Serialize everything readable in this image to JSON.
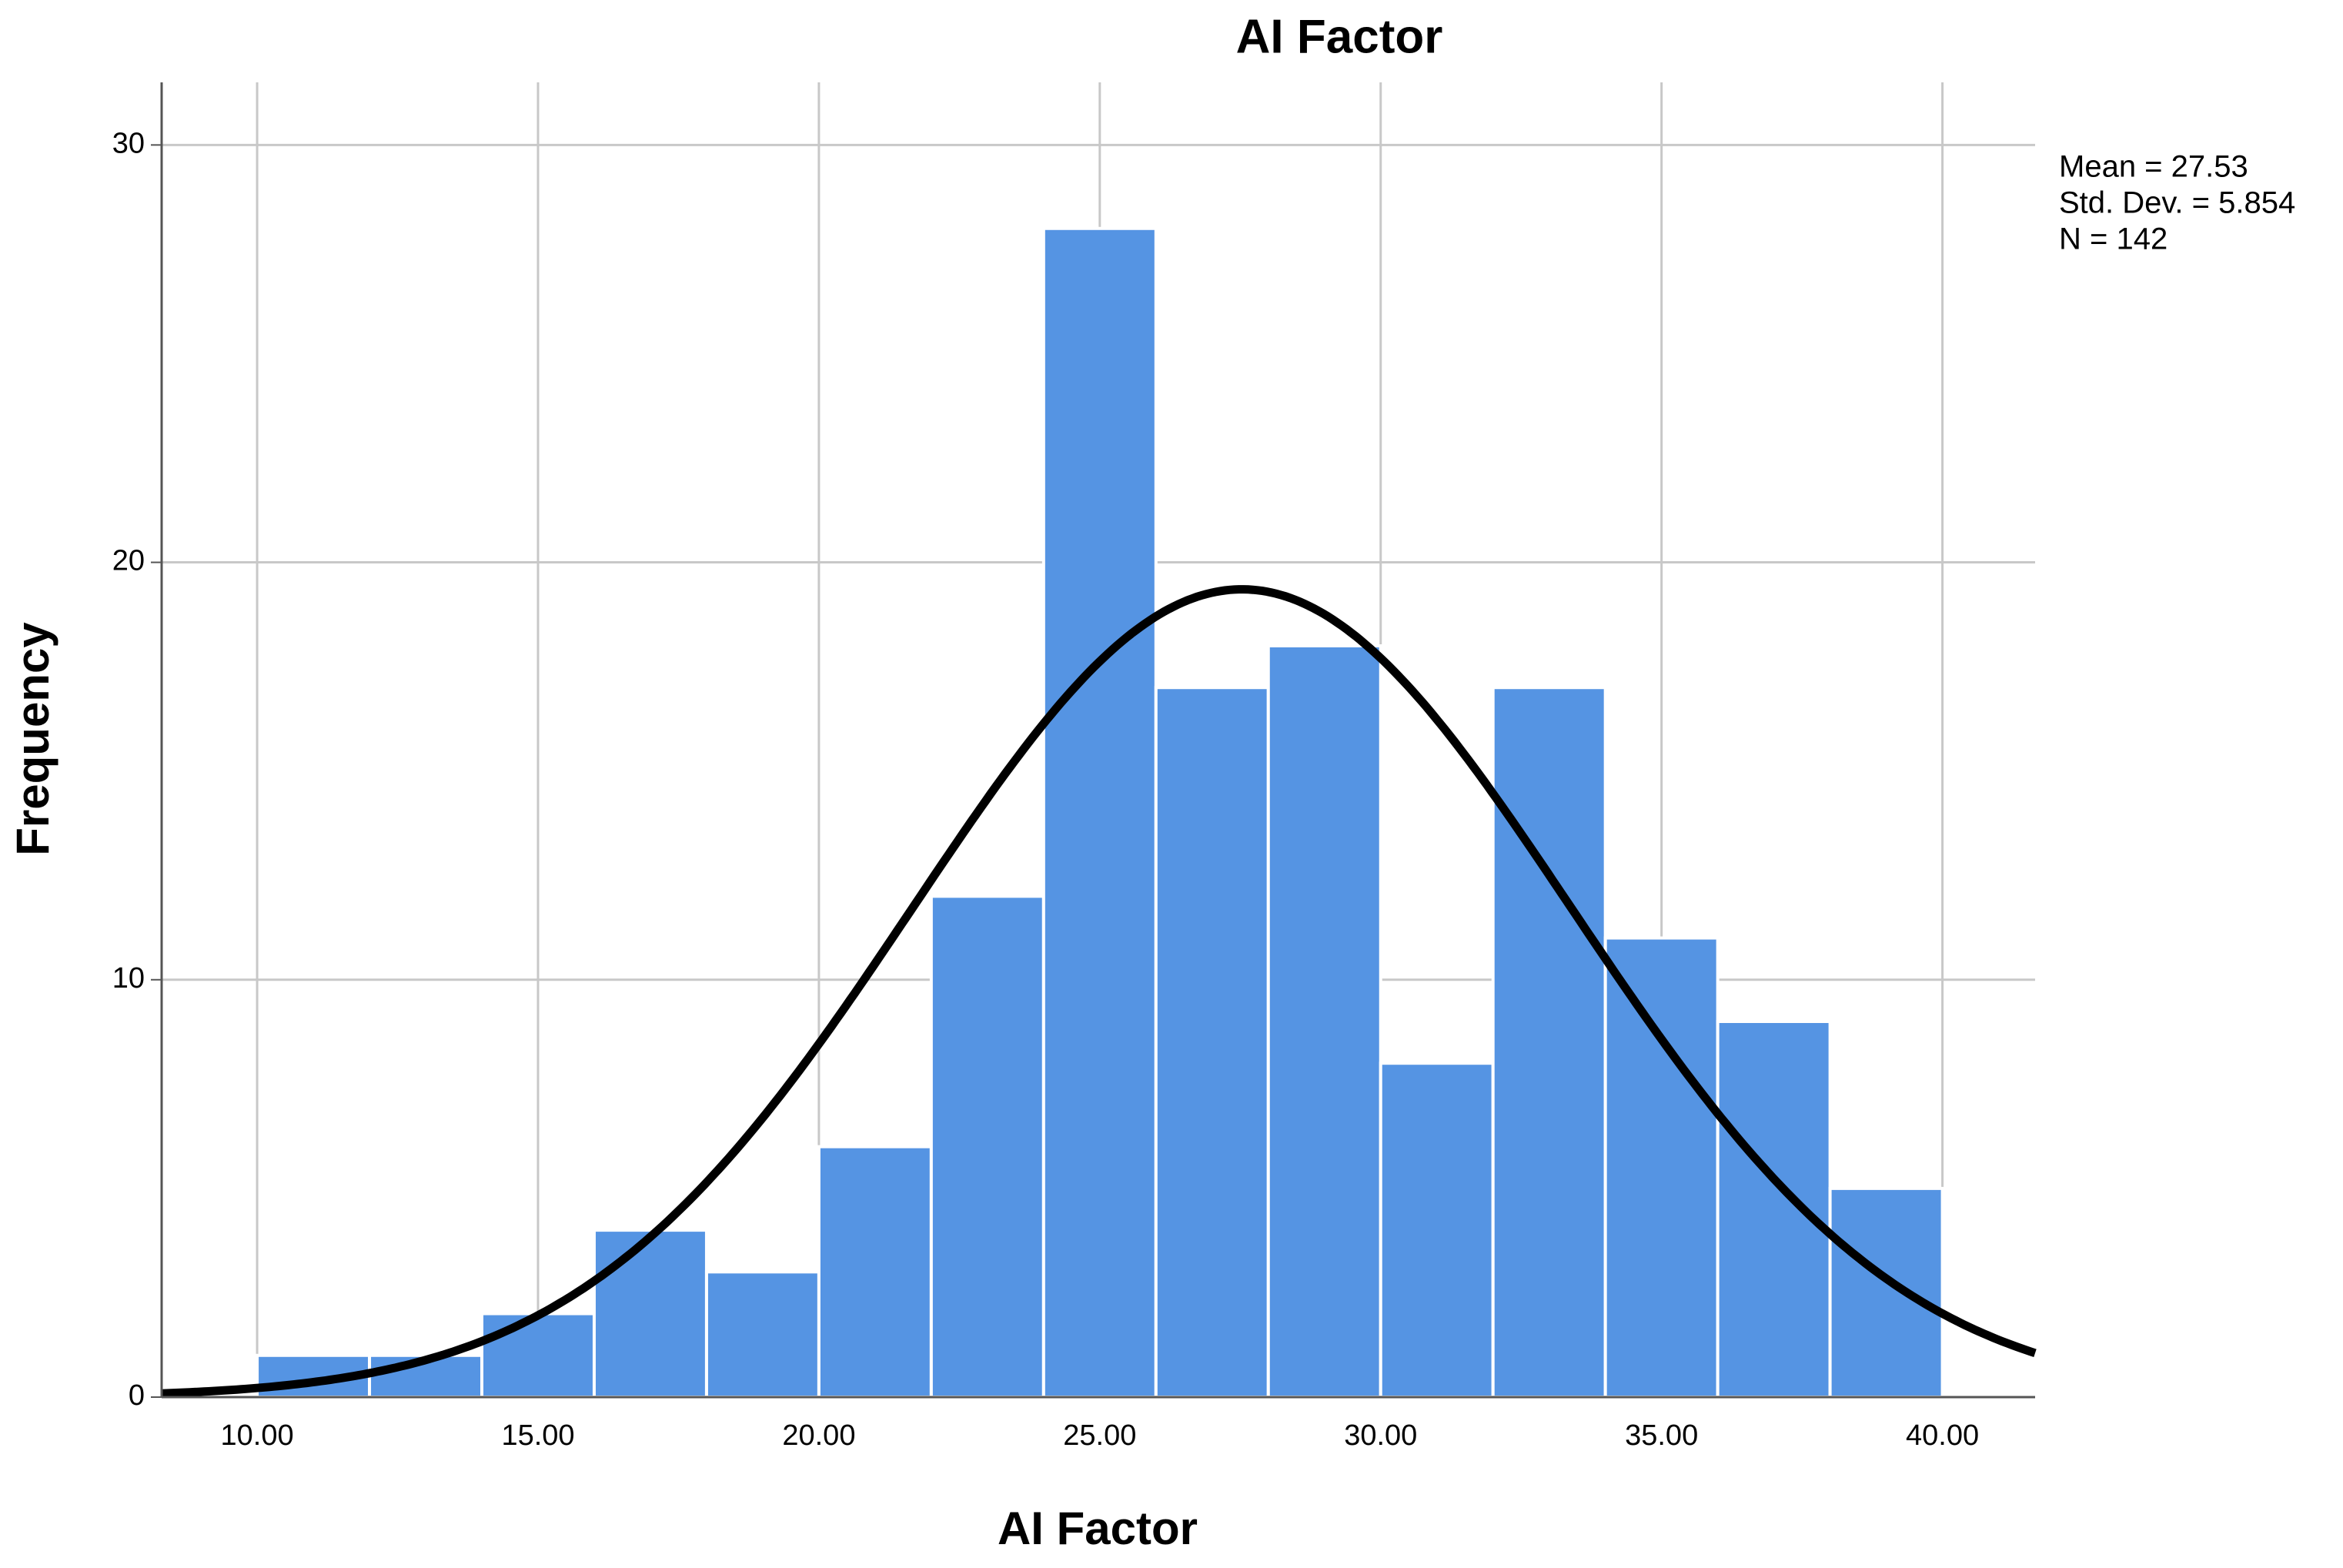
{
  "chart_data": {
    "type": "histogram",
    "title": "AI Factor",
    "x_label": "AI Factor",
    "y_label": "Frequency",
    "bins": [
      10,
      12,
      14,
      16,
      18,
      20,
      22,
      24,
      26,
      28,
      30,
      32,
      34,
      36,
      38,
      40
    ],
    "values": [
      1,
      1,
      2,
      4,
      3,
      6,
      12,
      28,
      17,
      18,
      8,
      17,
      11,
      9,
      5
    ],
    "color": "#5594e3",
    "xlim": [
      8.3,
      41.65
    ],
    "ylim": [
      0,
      31.5
    ],
    "xticks": [
      {
        "value": 10,
        "label": "10.00"
      },
      {
        "value": 15,
        "label": "15.00"
      },
      {
        "value": 20,
        "label": "20.00"
      },
      {
        "value": 25,
        "label": "25.00"
      },
      {
        "value": 30,
        "label": "30.00"
      },
      {
        "value": 35,
        "label": "35.00"
      },
      {
        "value": 40,
        "label": "40.00"
      }
    ],
    "yticks": [
      0,
      10,
      20,
      30
    ],
    "grid": true,
    "normal_curve": {
      "mean": 27.53,
      "std_dev": 5.854,
      "n": 142,
      "color": "#000000",
      "labels": [
        "Mean = 27.53",
        "Std. Dev. = 5.854",
        "N = 142"
      ]
    }
  }
}
